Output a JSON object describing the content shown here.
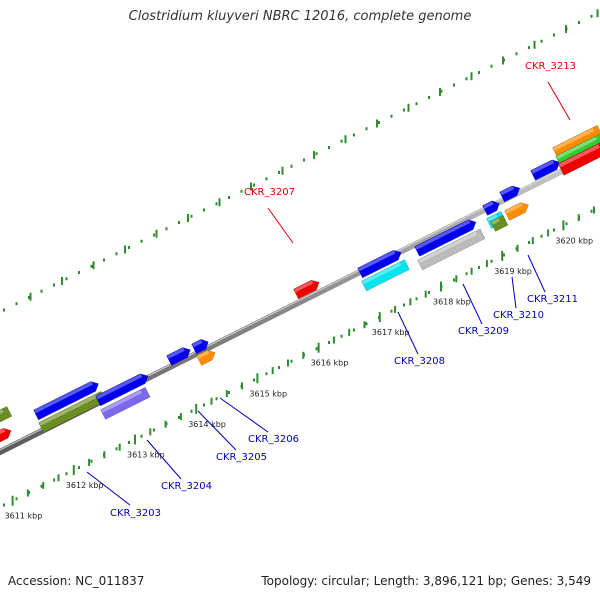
{
  "title": "Clostridium kluyveri NBRC 12016, complete genome",
  "footer": {
    "accession": "Accession: NC_011837",
    "summary": "Topology: circular; Length: 3,896,121 bp; Genes: 3,549"
  },
  "colors": {
    "backbone": "#888888",
    "tick": "#2e8b2e",
    "label_forward": "#dd0000",
    "label_reverse": "#0000bb",
    "blue": "#0000ee",
    "red": "#ee0000",
    "olive": "#6b8e23",
    "purple": "#7b68ee",
    "orange": "#ff8c00",
    "cyan": "#00e5ee",
    "gray": "#bbbbbb",
    "green": "#33cc33"
  },
  "ticks": [
    {
      "label": "3611 kbp"
    },
    {
      "label": "3612 kbp"
    },
    {
      "label": "3613 kbp"
    },
    {
      "label": "3614 kbp"
    },
    {
      "label": "3615 kbp"
    },
    {
      "label": "3616 kbp"
    },
    {
      "label": "3617 kbp"
    },
    {
      "label": "3618 kbp"
    },
    {
      "label": "3619 kbp"
    },
    {
      "label": "3620 kbp"
    }
  ],
  "gene_labels": [
    {
      "id": "CKR_3213",
      "strand": "forward"
    },
    {
      "id": "CKR_3207",
      "strand": "forward"
    },
    {
      "id": "CKR_3211",
      "strand": "reverse"
    },
    {
      "id": "CKR_3210",
      "strand": "reverse"
    },
    {
      "id": "CKR_3209",
      "strand": "reverse"
    },
    {
      "id": "CKR_3208",
      "strand": "reverse"
    },
    {
      "id": "CKR_3206",
      "strand": "reverse"
    },
    {
      "id": "CKR_3205",
      "strand": "reverse"
    },
    {
      "id": "CKR_3204",
      "strand": "reverse"
    },
    {
      "id": "CKR_3203",
      "strand": "reverse"
    }
  ]
}
